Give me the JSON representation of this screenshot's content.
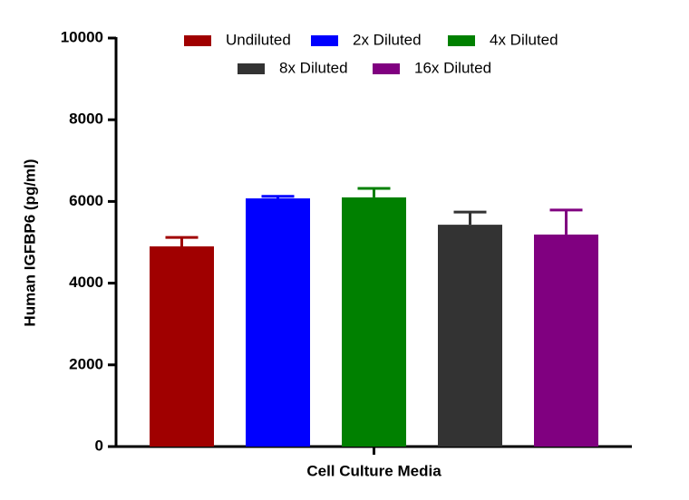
{
  "chart_data": {
    "type": "bar",
    "categories": [
      "Cell Culture Media"
    ],
    "y_label": "Human IGFBP6 (pg/ml)",
    "ylim": [
      0,
      10000
    ],
    "yticks": [
      0,
      2000,
      4000,
      6000,
      8000,
      10000
    ],
    "legend": "top",
    "series": [
      {
        "name": "Undiluted",
        "color": "#a00000",
        "values": [
          4900
        ],
        "errors": [
          220
        ]
      },
      {
        "name": "2x Diluted",
        "color": "#0000ff",
        "values": [
          6075
        ],
        "errors": [
          50
        ]
      },
      {
        "name": "4x Diluted",
        "color": "#008000",
        "values": [
          6100
        ],
        "errors": [
          220
        ]
      },
      {
        "name": "8x Diluted",
        "color": "#333333",
        "values": [
          5430
        ],
        "errors": [
          310
        ]
      },
      {
        "name": "16x Diluted",
        "color": "#800080",
        "values": [
          5190
        ],
        "errors": [
          600
        ]
      }
    ]
  }
}
